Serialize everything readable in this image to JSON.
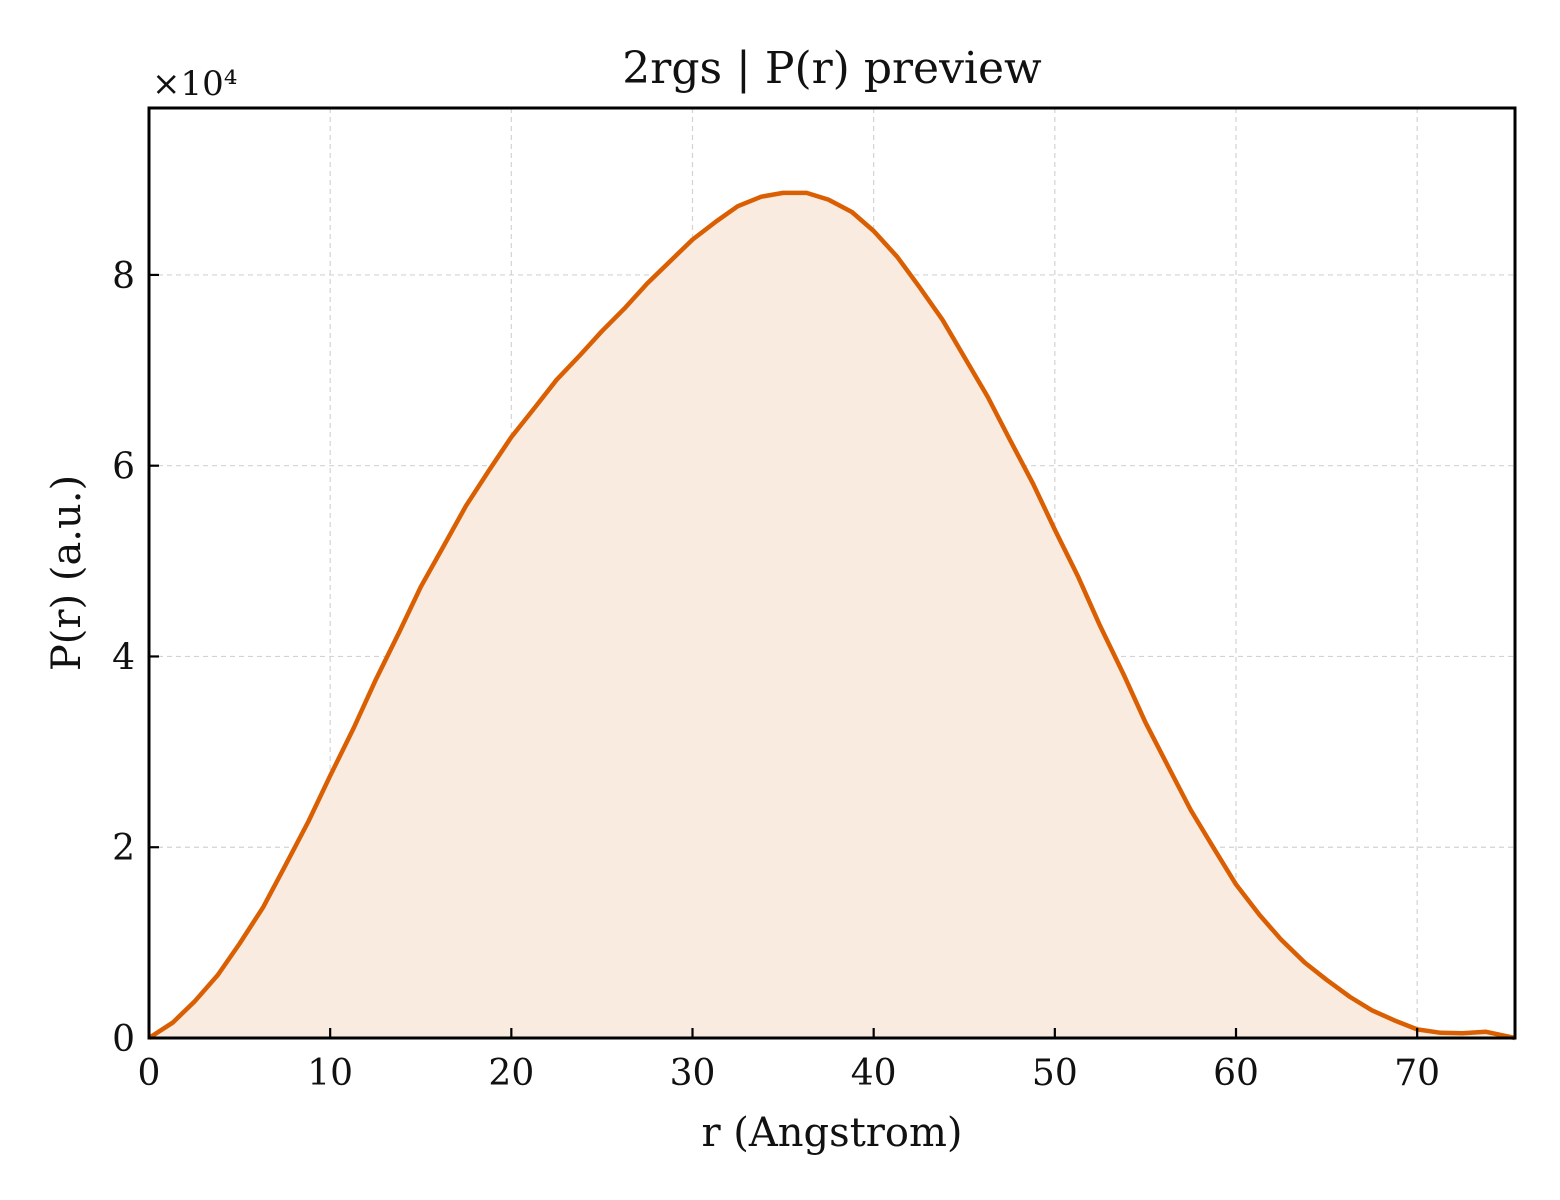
{
  "chart_data": {
    "type": "area",
    "title": "2rgs | P(r) preview",
    "xlabel": "r (Angstrom)",
    "ylabel": "P(r) (a.u.)",
    "y_multiplier": "×10⁴",
    "xlim": [
      0,
      75.4
    ],
    "ylim": [
      0,
      97500
    ],
    "x_ticks": [
      0,
      10,
      20,
      30,
      40,
      50,
      60,
      70
    ],
    "x_tick_labels": [
      "0",
      "10",
      "20",
      "30",
      "40",
      "50",
      "60",
      "70"
    ],
    "y_ticks": [
      0,
      20000,
      40000,
      60000,
      80000
    ],
    "y_tick_labels": [
      "0",
      "2",
      "4",
      "6",
      "8"
    ],
    "grid": true,
    "line_color": "#d95f02",
    "fill_color": "#f9ebe0",
    "series": [
      {
        "x": [
          0,
          1.3,
          2.5,
          3.8,
          5,
          6.3,
          7.5,
          8.8,
          10,
          11.3,
          12.5,
          13.8,
          15,
          16.3,
          17.5,
          18.8,
          20,
          21.3,
          22.5,
          23.8,
          25,
          26.3,
          27.5,
          28.8,
          30,
          31.3,
          32.5,
          33.8,
          35,
          36.3,
          37.5,
          38.8,
          40,
          41.3,
          42.5,
          43.8,
          45,
          46.3,
          47.5,
          48.8,
          50,
          51.3,
          52.5,
          53.8,
          55,
          56.3,
          57.5,
          58.8,
          60,
          61.3,
          62.5,
          63.8,
          65,
          66.3,
          67.5,
          68.8,
          70,
          71.3,
          72.5,
          73.8,
          75.4
        ],
        "y": [
          0,
          1600,
          3800,
          6600,
          9900,
          13700,
          18000,
          22700,
          27500,
          32500,
          37500,
          42500,
          47300,
          51700,
          55800,
          59600,
          63000,
          66100,
          69000,
          71600,
          74100,
          76600,
          79100,
          81500,
          83700,
          85600,
          87200,
          88200,
          88600,
          88600,
          87900,
          86600,
          84600,
          81900,
          78800,
          75300,
          71400,
          67200,
          62800,
          58100,
          53300,
          48300,
          43200,
          38100,
          33100,
          28300,
          23900,
          19800,
          16100,
          12900,
          10300,
          7900,
          6100,
          4300,
          2900,
          1800,
          900,
          550,
          500,
          650,
          0
        ]
      }
    ]
  }
}
